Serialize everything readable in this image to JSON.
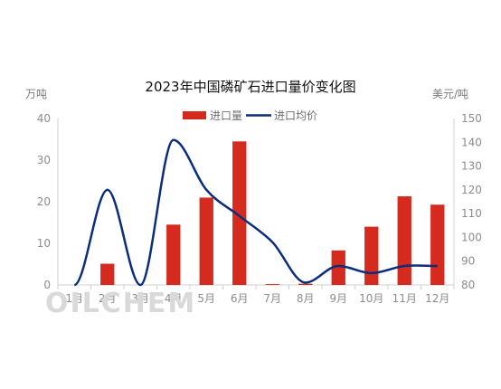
{
  "chart_data": {
    "type": "bar",
    "title": "2023年中国磷矿石进口量价变化图",
    "categories": [
      "1月",
      "2月",
      "3月",
      "4月",
      "5月",
      "6月",
      "7月",
      "8月",
      "9月",
      "10月",
      "11月",
      "12月"
    ],
    "series": [
      {
        "name": "进口量",
        "type": "bar",
        "axis": "left",
        "color": "#d42b1e",
        "values": [
          0,
          5.1,
          0,
          14.5,
          21,
          34.5,
          0.2,
          0.3,
          8.3,
          14,
          21.3,
          19.3
        ]
      },
      {
        "name": "进口均价",
        "type": "line",
        "axis": "right",
        "color": "#0b2e7a",
        "values": [
          null,
          120,
          null,
          141,
          120,
          109,
          98,
          81,
          88,
          85,
          88,
          88
        ]
      }
    ],
    "y_left": {
      "unit": "万吨",
      "min": 0,
      "max": 40,
      "ticks": [
        0,
        10,
        20,
        30,
        40
      ]
    },
    "y_right": {
      "unit": "美元/吨",
      "min": 80,
      "max": 150,
      "ticks": [
        80,
        90,
        100,
        110,
        120,
        130,
        140,
        150
      ]
    },
    "legend_position": "top-center",
    "grid": false
  },
  "watermark": "OILCHEM"
}
